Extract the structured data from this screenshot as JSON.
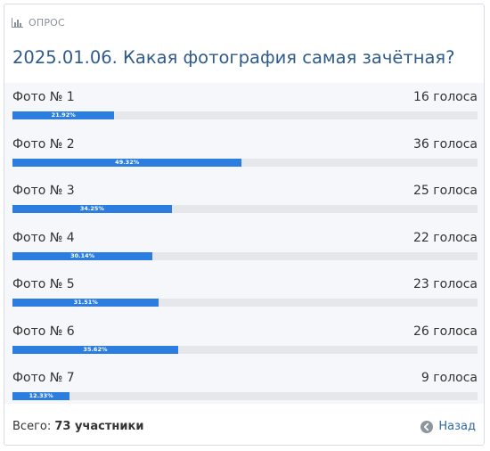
{
  "header": {
    "label": "ОПРОС",
    "icon": "bar-chart-icon"
  },
  "title": "2025.01.06. Какая фотография самая зачётная?",
  "options": [
    {
      "label": "Фото № 1",
      "votes": "16 голоса",
      "percent_text": "21.92%",
      "percent": 21.92
    },
    {
      "label": "Фото № 2",
      "votes": "36 голоса",
      "percent_text": "49.32%",
      "percent": 49.32
    },
    {
      "label": "Фото № 3",
      "votes": "25 голоса",
      "percent_text": "34.25%",
      "percent": 34.25
    },
    {
      "label": "Фото № 4",
      "votes": "22 голоса",
      "percent_text": "30.14%",
      "percent": 30.14
    },
    {
      "label": "Фото № 5",
      "votes": "23 голоса",
      "percent_text": "31.51%",
      "percent": 31.51
    },
    {
      "label": "Фото № 6",
      "votes": "26 голоса",
      "percent_text": "35.62%",
      "percent": 35.62
    },
    {
      "label": "Фото № 7",
      "votes": "9 голоса",
      "percent_text": "12.33%",
      "percent": 12.33
    }
  ],
  "footer": {
    "total_prefix": "Всего:",
    "total_value": "73 участники",
    "back_label": "Назад",
    "back_icon": "arrow-left-circle-icon"
  },
  "colors": {
    "bar_fill": "#2b7de0",
    "bar_track": "#e6e7ea",
    "title": "#2f5b8c",
    "link": "#2f6aa8"
  }
}
